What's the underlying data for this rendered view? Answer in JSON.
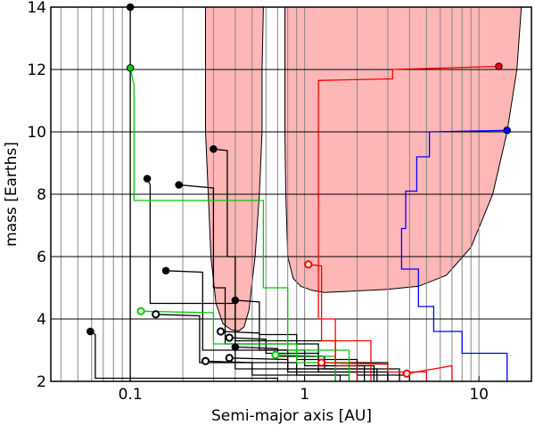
{
  "chart_data": {
    "type": "line",
    "xlabel": "Semi-major axis [AU]",
    "ylabel": "mass [Earths]",
    "x_scale": "log",
    "xlim": [
      0.035,
      20
    ],
    "ylim": [
      2,
      14
    ],
    "x_ticks": [
      {
        "value": 0.1,
        "label": "0.1"
      },
      {
        "value": 1,
        "label": "1"
      },
      {
        "value": 10,
        "label": "10"
      }
    ],
    "y_ticks": [
      {
        "value": 2,
        "label": "2"
      },
      {
        "value": 4,
        "label": "4"
      },
      {
        "value": 6,
        "label": "6"
      },
      {
        "value": 8,
        "label": "8"
      },
      {
        "value": 10,
        "label": "10"
      },
      {
        "value": 12,
        "label": "12"
      },
      {
        "value": 14,
        "label": "14"
      }
    ],
    "grid": true,
    "grid_lines_x": [
      0.04,
      0.05,
      0.06,
      0.07,
      0.08,
      0.09,
      0.1,
      0.2,
      0.3,
      0.4,
      0.5,
      0.6,
      0.7,
      0.8,
      0.9,
      1,
      2,
      3,
      4,
      5,
      6,
      7,
      8,
      9,
      10
    ],
    "migration_regions": [
      {
        "name": "inner-zone",
        "color": "#ffb6b6",
        "boundary": [
          [
            0.27,
            14.0
          ],
          [
            0.27,
            12.0
          ],
          [
            0.27,
            10.0
          ],
          [
            0.28,
            8.0
          ],
          [
            0.29,
            6.0
          ],
          [
            0.31,
            4.5
          ],
          [
            0.34,
            3.85
          ],
          [
            0.38,
            3.65
          ],
          [
            0.42,
            3.62
          ],
          [
            0.45,
            3.75
          ],
          [
            0.48,
            4.3
          ],
          [
            0.52,
            6.0
          ],
          [
            0.55,
            8.0
          ],
          [
            0.57,
            10.0
          ],
          [
            0.57,
            12.0
          ],
          [
            0.58,
            14.0
          ]
        ]
      },
      {
        "name": "outer-zone",
        "color": "#ffb6b6",
        "boundary": [
          [
            0.77,
            14.0
          ],
          [
            0.77,
            12.0
          ],
          [
            0.77,
            10.0
          ],
          [
            0.78,
            8.0
          ],
          [
            0.8,
            6.0
          ],
          [
            0.86,
            5.3
          ],
          [
            0.95,
            5.05
          ],
          [
            1.1,
            4.92
          ],
          [
            1.3,
            4.85
          ],
          [
            2.0,
            4.9
          ],
          [
            3.0,
            4.95
          ],
          [
            4.5,
            5.05
          ],
          [
            6.5,
            5.4
          ],
          [
            9.0,
            6.3
          ],
          [
            12.0,
            8.0
          ],
          [
            14.5,
            10.0
          ],
          [
            16.5,
            12.0
          ],
          [
            17.5,
            14.0
          ]
        ]
      }
    ],
    "series": [
      {
        "color": "#000000",
        "final": [
          0.059,
          3.6
        ],
        "filled": true,
        "path": [
          [
            0.059,
            3.6
          ],
          [
            0.063,
            3.5
          ],
          [
            0.063,
            2.1
          ],
          [
            0.7,
            2.1
          ],
          [
            0.7,
            2.0
          ]
        ]
      },
      {
        "color": "#000000",
        "final": [
          0.1,
          14.0
        ],
        "filled": true,
        "path": [
          [
            0.1,
            14.0
          ],
          [
            0.1,
            2.0
          ]
        ]
      },
      {
        "color": "#000000",
        "final": [
          0.125,
          8.5
        ],
        "filled": true,
        "path": [
          [
            0.125,
            8.5
          ],
          [
            0.13,
            8.3
          ],
          [
            0.13,
            4.5
          ],
          [
            0.4,
            4.5
          ],
          [
            0.4,
            2.4
          ],
          [
            1.5,
            2.4
          ],
          [
            1.5,
            2.0
          ]
        ]
      },
      {
        "color": "#000000",
        "final": [
          0.16,
          5.55
        ],
        "filled": true,
        "path": [
          [
            0.16,
            5.55
          ],
          [
            0.26,
            5.5
          ],
          [
            0.26,
            3.0
          ],
          [
            0.8,
            3.0
          ],
          [
            0.8,
            2.3
          ],
          [
            2.0,
            2.3
          ],
          [
            2.0,
            2.0
          ]
        ]
      },
      {
        "color": "#000000",
        "final": [
          0.19,
          8.3
        ],
        "filled": true,
        "path": [
          [
            0.19,
            8.3
          ],
          [
            0.3,
            8.2
          ],
          [
            0.3,
            5.0
          ],
          [
            0.35,
            5.0
          ],
          [
            0.35,
            3.2
          ],
          [
            1.2,
            3.2
          ],
          [
            1.2,
            2.5
          ],
          [
            2.5,
            2.5
          ],
          [
            2.5,
            2.0
          ]
        ]
      },
      {
        "color": "#000000",
        "final": [
          0.3,
          9.45
        ],
        "filled": true,
        "path": [
          [
            0.3,
            9.45
          ],
          [
            0.36,
            9.4
          ],
          [
            0.36,
            6.0
          ],
          [
            0.4,
            6.0
          ],
          [
            0.4,
            3.3
          ],
          [
            1.5,
            3.3
          ],
          [
            1.5,
            2.6
          ],
          [
            3.0,
            2.6
          ],
          [
            3.0,
            2.0
          ]
        ]
      },
      {
        "color": "#000000",
        "final": [
          0.4,
          4.6
        ],
        "filled": true,
        "path": [
          [
            0.4,
            4.6
          ],
          [
            0.55,
            4.55
          ],
          [
            0.55,
            3.5
          ],
          [
            0.9,
            3.5
          ],
          [
            0.9,
            2.7
          ],
          [
            2.0,
            2.7
          ],
          [
            2.0,
            2.2
          ],
          [
            4.0,
            2.2
          ],
          [
            4.0,
            2.0
          ]
        ]
      },
      {
        "color": "#000000",
        "final": [
          0.4,
          3.1
        ],
        "filled": true,
        "path": [
          [
            0.4,
            3.1
          ],
          [
            0.7,
            3.05
          ],
          [
            0.7,
            2.8
          ],
          [
            1.3,
            2.8
          ],
          [
            1.3,
            2.4
          ],
          [
            3.5,
            2.4
          ],
          [
            3.5,
            2.0
          ]
        ]
      },
      {
        "color": "#000000",
        "final": [
          0.14,
          4.15
        ],
        "filled": false,
        "path": [
          [
            0.14,
            4.15
          ],
          [
            0.25,
            4.1
          ],
          [
            0.25,
            2.6
          ],
          [
            0.9,
            2.6
          ],
          [
            0.9,
            2.2
          ],
          [
            1.8,
            2.2
          ],
          [
            1.8,
            2.0
          ]
        ]
      },
      {
        "color": "#000000",
        "final": [
          0.33,
          3.6
        ],
        "filled": false,
        "path": [
          [
            0.33,
            3.6
          ],
          [
            0.55,
            3.55
          ],
          [
            0.55,
            3.0
          ],
          [
            1.0,
            3.0
          ],
          [
            1.0,
            2.5
          ],
          [
            2.2,
            2.5
          ],
          [
            2.2,
            2.0
          ]
        ]
      },
      {
        "color": "#000000",
        "final": [
          0.37,
          3.4
        ],
        "filled": false,
        "path": [
          [
            0.37,
            3.4
          ],
          [
            0.6,
            3.35
          ],
          [
            0.6,
            2.9
          ],
          [
            1.2,
            2.9
          ],
          [
            1.2,
            2.3
          ],
          [
            3.0,
            2.3
          ],
          [
            3.0,
            2.0
          ]
        ]
      },
      {
        "color": "#000000",
        "final": [
          0.37,
          2.75
        ],
        "filled": false,
        "path": [
          [
            0.37,
            2.75
          ],
          [
            0.8,
            2.7
          ],
          [
            0.8,
            2.4
          ],
          [
            2.6,
            2.4
          ],
          [
            2.6,
            2.0
          ]
        ]
      },
      {
        "color": "#000000",
        "final": [
          0.27,
          2.65
        ],
        "filled": false,
        "path": [
          [
            0.27,
            2.65
          ],
          [
            0.5,
            2.6
          ],
          [
            0.5,
            2.2
          ],
          [
            1.6,
            2.2
          ],
          [
            1.6,
            2.0
          ]
        ]
      },
      {
        "color": "#00cc00",
        "final": [
          0.1,
          12.05
        ],
        "filled": true,
        "path": [
          [
            0.1,
            12.05
          ],
          [
            0.105,
            11.5
          ],
          [
            0.105,
            7.8
          ],
          [
            0.58,
            7.8
          ],
          [
            0.58,
            5.0
          ],
          [
            0.8,
            5.0
          ],
          [
            0.8,
            3.0
          ],
          [
            1.8,
            3.0
          ],
          [
            1.8,
            2.0
          ]
        ]
      },
      {
        "color": "#00cc00",
        "final": [
          0.115,
          4.25
        ],
        "filled": false,
        "path": [
          [
            0.115,
            4.25
          ],
          [
            0.3,
            4.2
          ],
          [
            0.3,
            3.2
          ],
          [
            0.9,
            3.2
          ],
          [
            0.9,
            2.6
          ],
          [
            1.8,
            2.6
          ],
          [
            1.8,
            2.0
          ]
        ]
      },
      {
        "color": "#00cc00",
        "final": [
          0.68,
          2.85
        ],
        "filled": false,
        "path": [
          [
            0.68,
            2.85
          ],
          [
            1.5,
            2.8
          ],
          [
            1.5,
            2.0
          ]
        ]
      },
      {
        "color": "#ff0000",
        "final": [
          13.0,
          12.1
        ],
        "filled": true,
        "path": [
          [
            13.0,
            12.1
          ],
          [
            3.2,
            12.0
          ],
          [
            3.2,
            11.7
          ],
          [
            1.2,
            11.65
          ],
          [
            1.2,
            4.0
          ],
          [
            1.5,
            4.0
          ],
          [
            1.5,
            2.5
          ],
          [
            2.0,
            2.5
          ],
          [
            2.0,
            2.0
          ]
        ]
      },
      {
        "color": "#ff0000",
        "final": [
          1.05,
          5.75
        ],
        "filled": false,
        "path": [
          [
            1.05,
            5.75
          ],
          [
            1.25,
            5.7
          ],
          [
            1.25,
            3.3
          ],
          [
            2.4,
            3.3
          ],
          [
            2.4,
            2.0
          ]
        ]
      },
      {
        "color": "#ff0000",
        "final": [
          1.25,
          2.6
        ],
        "filled": false,
        "path": [
          [
            1.25,
            2.6
          ],
          [
            3.0,
            2.55
          ],
          [
            3.0,
            2.3
          ],
          [
            5.0,
            2.3
          ],
          [
            5.0,
            2.0
          ]
        ]
      },
      {
        "color": "#ff0000",
        "final": [
          3.85,
          2.25
        ],
        "filled": false,
        "path": [
          [
            3.85,
            2.25
          ],
          [
            7.0,
            2.5
          ],
          [
            7.0,
            2.0
          ]
        ]
      },
      {
        "color": "#0000ff",
        "final": [
          14.5,
          10.05
        ],
        "filled": true,
        "path": [
          [
            14.5,
            10.05
          ],
          [
            5.2,
            10.0
          ],
          [
            5.2,
            9.2
          ],
          [
            4.4,
            9.2
          ],
          [
            4.4,
            8.1
          ],
          [
            3.8,
            8.1
          ],
          [
            3.8,
            6.9
          ],
          [
            3.6,
            6.9
          ],
          [
            3.6,
            5.6
          ],
          [
            4.5,
            5.6
          ],
          [
            4.5,
            4.4
          ],
          [
            5.5,
            4.4
          ],
          [
            5.5,
            3.6
          ],
          [
            8.0,
            3.6
          ],
          [
            8.0,
            2.9
          ],
          [
            14.5,
            2.9
          ],
          [
            14.5,
            2.0
          ]
        ]
      }
    ]
  }
}
